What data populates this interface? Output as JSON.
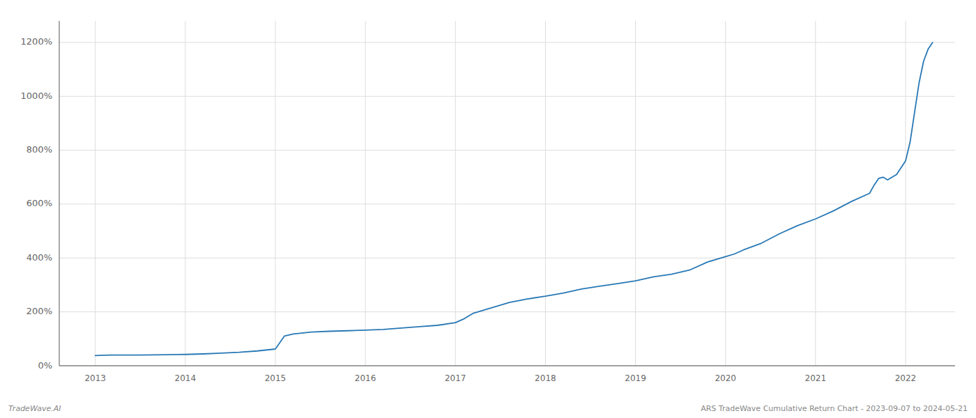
{
  "chart_data": {
    "type": "line",
    "color": "#2878b5",
    "grid": true,
    "x": [
      2013.0,
      2013.1,
      2013.2,
      2013.5,
      2013.8,
      2014.0,
      2014.2,
      2014.4,
      2014.6,
      2014.8,
      2015.0,
      2015.1,
      2015.2,
      2015.4,
      2015.6,
      2015.8,
      2016.0,
      2016.2,
      2016.4,
      2016.6,
      2016.8,
      2017.0,
      2017.1,
      2017.2,
      2017.4,
      2017.6,
      2017.8,
      2018.0,
      2018.2,
      2018.4,
      2018.6,
      2018.8,
      2019.0,
      2019.2,
      2019.4,
      2019.6,
      2019.8,
      2020.0,
      2020.1,
      2020.2,
      2020.4,
      2020.6,
      2020.8,
      2021.0,
      2021.2,
      2021.4,
      2021.6,
      2021.65,
      2021.7,
      2021.75,
      2021.8,
      2021.9,
      2022.0,
      2022.05,
      2022.1,
      2022.15,
      2022.2,
      2022.25,
      2022.3
    ],
    "values": [
      38,
      39,
      40,
      40,
      41,
      42,
      44,
      47,
      50,
      55,
      62,
      110,
      118,
      125,
      128,
      130,
      132,
      135,
      140,
      145,
      150,
      160,
      175,
      195,
      215,
      235,
      248,
      258,
      270,
      285,
      295,
      305,
      315,
      330,
      340,
      355,
      385,
      405,
      415,
      430,
      455,
      490,
      520,
      545,
      575,
      610,
      640,
      670,
      695,
      700,
      690,
      710,
      760,
      830,
      940,
      1050,
      1130,
      1175,
      1200
    ],
    "xlim": [
      2012.6,
      2022.55
    ],
    "xticks": [
      2013,
      2014,
      2015,
      2016,
      2017,
      2018,
      2019,
      2020,
      2021,
      2022
    ],
    "ylim": [
      0,
      1280
    ],
    "yticks": [
      {
        "value": 0,
        "label": "0%"
      },
      {
        "value": 200,
        "label": "200%"
      },
      {
        "value": 400,
        "label": "400%"
      },
      {
        "value": 600,
        "label": "600%"
      },
      {
        "value": 800,
        "label": "800%"
      },
      {
        "value": 1000,
        "label": "1000%"
      },
      {
        "value": 1200,
        "label": "1200%"
      }
    ],
    "annotations": [
      "TradeWave.AI",
      "ARS TradeWave Cumulative Return Chart - 2023-09-07 to 2024-05-21"
    ]
  }
}
